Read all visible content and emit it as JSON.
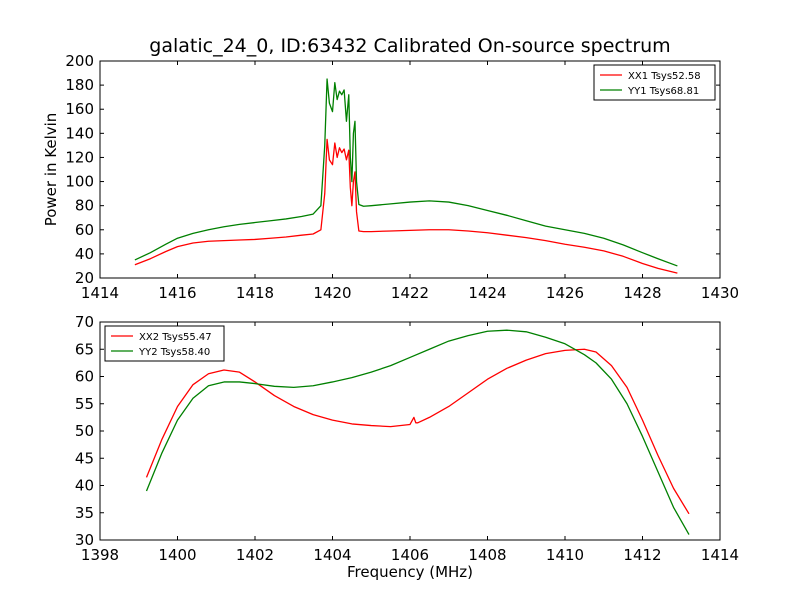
{
  "figure": {
    "title": "galatic_24_0, ID:63432 Calibrated On-source spectrum"
  },
  "chart_data": [
    {
      "type": "line",
      "title": "galatic_24_0, ID:63432 Calibrated On-source spectrum",
      "xlabel": "",
      "ylabel": "Power in Kelvin",
      "xlim": [
        1414,
        1430
      ],
      "ylim": [
        20,
        200
      ],
      "xticks": [
        1414,
        1416,
        1418,
        1420,
        1422,
        1424,
        1426,
        1428,
        1430
      ],
      "yticks": [
        20,
        40,
        60,
        80,
        100,
        120,
        140,
        160,
        180,
        200
      ],
      "grid": false,
      "legend": "top-right",
      "series": [
        {
          "name": "XX1 Tsys52.58",
          "color": "#ff0000",
          "x": [
            1414.9,
            1415.3,
            1415.7,
            1416.0,
            1416.4,
            1416.8,
            1417.2,
            1417.6,
            1418.0,
            1418.4,
            1418.8,
            1419.2,
            1419.5,
            1419.7,
            1419.8,
            1419.86,
            1419.92,
            1420.0,
            1420.06,
            1420.12,
            1420.18,
            1420.24,
            1420.3,
            1420.36,
            1420.42,
            1420.46,
            1420.5,
            1420.54,
            1420.58,
            1420.62,
            1420.68,
            1420.8,
            1421.0,
            1421.5,
            1422.0,
            1422.5,
            1423.0,
            1423.5,
            1424.0,
            1424.5,
            1425.0,
            1425.5,
            1426.0,
            1426.5,
            1427.0,
            1427.5,
            1428.0,
            1428.4,
            1428.9
          ],
          "y": [
            31,
            36,
            42,
            46,
            49,
            50.5,
            51,
            51.5,
            52,
            53,
            54,
            55.5,
            56.5,
            60,
            90,
            135,
            118,
            114,
            132,
            120,
            128,
            124,
            127,
            118,
            126,
            95,
            80,
            100,
            108,
            75,
            59,
            58.5,
            58.5,
            59,
            59.5,
            60,
            60,
            59,
            57.5,
            55.5,
            53.5,
            51,
            48,
            45.5,
            42.5,
            38,
            32,
            28,
            24
          ]
        },
        {
          "name": "YY1 Tsys68.81",
          "color": "#008000",
          "x": [
            1414.9,
            1415.3,
            1415.7,
            1416.0,
            1416.4,
            1416.8,
            1417.2,
            1417.6,
            1418.0,
            1418.4,
            1418.8,
            1419.2,
            1419.5,
            1419.7,
            1419.8,
            1419.86,
            1419.92,
            1420.0,
            1420.06,
            1420.12,
            1420.18,
            1420.24,
            1420.3,
            1420.36,
            1420.42,
            1420.46,
            1420.5,
            1420.54,
            1420.58,
            1420.62,
            1420.68,
            1420.8,
            1421.0,
            1421.5,
            1422.0,
            1422.5,
            1423.0,
            1423.5,
            1424.0,
            1424.5,
            1425.0,
            1425.5,
            1426.0,
            1426.5,
            1427.0,
            1427.5,
            1428.0,
            1428.4,
            1428.9
          ],
          "y": [
            35,
            41,
            48,
            53,
            57,
            60,
            62.5,
            64.5,
            66,
            67.5,
            69,
            71,
            73,
            80,
            130,
            185,
            165,
            158,
            182,
            168,
            175,
            172,
            176,
            150,
            172,
            120,
            100,
            140,
            150,
            100,
            81,
            79.5,
            80,
            81.5,
            83,
            84,
            83,
            80,
            76,
            72,
            67.5,
            63,
            60,
            57,
            53,
            47.5,
            41,
            36,
            30
          ]
        }
      ]
    },
    {
      "type": "line",
      "title": "",
      "xlabel": "Frequency (MHz)",
      "ylabel": "",
      "xlim": [
        1398,
        1414
      ],
      "ylim": [
        30,
        70
      ],
      "xticks": [
        1398,
        1400,
        1402,
        1404,
        1406,
        1408,
        1410,
        1412,
        1414
      ],
      "yticks": [
        30,
        35,
        40,
        45,
        50,
        55,
        60,
        65,
        70
      ],
      "grid": false,
      "legend": "top-left",
      "series": [
        {
          "name": "XX2 Tsys55.47",
          "color": "#ff0000",
          "x": [
            1399.2,
            1399.6,
            1400.0,
            1400.4,
            1400.8,
            1401.2,
            1401.6,
            1402.0,
            1402.5,
            1403.0,
            1403.5,
            1404.0,
            1404.5,
            1405.0,
            1405.5,
            1406.0,
            1406.1,
            1406.15,
            1406.2,
            1406.5,
            1407.0,
            1407.5,
            1408.0,
            1408.5,
            1409.0,
            1409.5,
            1410.0,
            1410.5,
            1410.8,
            1411.2,
            1411.6,
            1412.0,
            1412.4,
            1412.8,
            1413.2
          ],
          "y": [
            41.5,
            48.5,
            54.5,
            58.5,
            60.5,
            61.2,
            60.8,
            59,
            56.5,
            54.5,
            53,
            52,
            51.3,
            51,
            50.8,
            51.2,
            52.5,
            51.5,
            51.5,
            52.5,
            54.5,
            57,
            59.5,
            61.5,
            63,
            64.2,
            64.8,
            65,
            64.5,
            62,
            58,
            52,
            45.5,
            39.5,
            34.8
          ]
        },
        {
          "name": "YY2 Tsys58.40",
          "color": "#008000",
          "x": [
            1399.2,
            1399.6,
            1400.0,
            1400.4,
            1400.8,
            1401.2,
            1401.6,
            1402.0,
            1402.5,
            1403.0,
            1403.5,
            1404.0,
            1404.5,
            1405.0,
            1405.5,
            1406.0,
            1406.5,
            1407.0,
            1407.5,
            1408.0,
            1408.5,
            1409.0,
            1409.5,
            1410.0,
            1410.5,
            1410.8,
            1411.2,
            1411.6,
            1412.0,
            1412.4,
            1412.8,
            1413.2
          ],
          "y": [
            39,
            46,
            52,
            56,
            58.3,
            59,
            59,
            58.7,
            58.2,
            58,
            58.3,
            59,
            59.8,
            60.8,
            62,
            63.5,
            65,
            66.5,
            67.5,
            68.3,
            68.5,
            68.2,
            67.2,
            66,
            64,
            62.5,
            59.5,
            55,
            49,
            42.5,
            36,
            31
          ]
        }
      ]
    }
  ]
}
